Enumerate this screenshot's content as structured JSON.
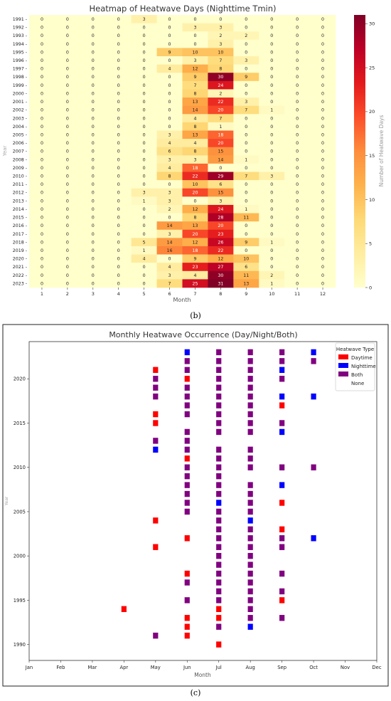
{
  "captions": {
    "b": "(b)",
    "c": "(c)"
  },
  "colors": {
    "daytime": "#ff0000",
    "nighttime": "#0000ff",
    "both": "#800080",
    "heat_low": "#ffffcc",
    "heat_high": "#800026"
  },
  "chart_data": [
    {
      "type": "heatmap",
      "title": "Heatmap of Heatwave Days (Nighttime Tmin)",
      "xlabel": "Month",
      "ylabel": "Year",
      "colorbar_label": "Number of Heatwave Days",
      "colorbar_range": [
        0,
        31
      ],
      "colorbar_ticks": [
        0,
        5,
        10,
        15,
        20,
        25,
        30
      ],
      "columns": [
        1,
        2,
        3,
        4,
        5,
        6,
        7,
        8,
        9,
        10,
        11,
        12
      ],
      "rows": [
        "1991",
        "1992",
        "1993",
        "1994",
        "1995",
        "1996",
        "1997",
        "1998",
        "1999",
        "2000",
        "2001",
        "2002",
        "2003",
        "2004",
        "2005",
        "2006",
        "2007",
        "2008",
        "2009",
        "2010",
        "2011",
        "2012",
        "2013",
        "2014",
        "2015",
        "2016",
        "2017",
        "2018",
        "2019",
        "2020",
        "2021",
        "2022",
        "2023"
      ],
      "values": [
        [
          0,
          0,
          0,
          0,
          3,
          0,
          0,
          0,
          0,
          0,
          0,
          0
        ],
        [
          0,
          0,
          0,
          0,
          0,
          0,
          3,
          3,
          0,
          0,
          0,
          0
        ],
        [
          0,
          0,
          0,
          0,
          0,
          0,
          0,
          2,
          2,
          0,
          0,
          0
        ],
        [
          0,
          0,
          0,
          0,
          0,
          0,
          0,
          3,
          0,
          0,
          0,
          0
        ],
        [
          0,
          0,
          0,
          0,
          0,
          9,
          10,
          10,
          0,
          0,
          0,
          0
        ],
        [
          0,
          0,
          0,
          0,
          0,
          0,
          3,
          7,
          3,
          0,
          0,
          0
        ],
        [
          0,
          0,
          0,
          0,
          0,
          4,
          12,
          8,
          0,
          0,
          0,
          0
        ],
        [
          0,
          0,
          0,
          0,
          0,
          0,
          9,
          30,
          9,
          0,
          0,
          0
        ],
        [
          0,
          0,
          0,
          0,
          0,
          0,
          7,
          24,
          0,
          0,
          0,
          0
        ],
        [
          0,
          0,
          0,
          0,
          0,
          0,
          8,
          2,
          0,
          0,
          0,
          0
        ],
        [
          0,
          0,
          0,
          0,
          0,
          0,
          13,
          22,
          3,
          0,
          0,
          0
        ],
        [
          0,
          0,
          0,
          0,
          0,
          0,
          14,
          20,
          7,
          1,
          0,
          0
        ],
        [
          0,
          0,
          0,
          0,
          0,
          0,
          4,
          7,
          0,
          0,
          0,
          0
        ],
        [
          0,
          0,
          0,
          0,
          0,
          0,
          8,
          1,
          0,
          0,
          0,
          0
        ],
        [
          0,
          0,
          0,
          0,
          0,
          3,
          13,
          18,
          0,
          0,
          0,
          0
        ],
        [
          0,
          0,
          0,
          0,
          0,
          4,
          4,
          20,
          0,
          0,
          0,
          0
        ],
        [
          0,
          0,
          0,
          0,
          0,
          6,
          8,
          15,
          0,
          0,
          0,
          0
        ],
        [
          0,
          0,
          0,
          0,
          0,
          3,
          3,
          14,
          1,
          0,
          0,
          0
        ],
        [
          0,
          0,
          0,
          0,
          0,
          4,
          18,
          0,
          0,
          0,
          0,
          0
        ],
        [
          0,
          0,
          0,
          0,
          0,
          8,
          22,
          29,
          7,
          3,
          0,
          0
        ],
        [
          0,
          0,
          0,
          0,
          0,
          0,
          10,
          6,
          0,
          0,
          0,
          0
        ],
        [
          0,
          0,
          0,
          0,
          3,
          3,
          20,
          15,
          0,
          0,
          0,
          0
        ],
        [
          0,
          0,
          0,
          0,
          1,
          3,
          0,
          3,
          0,
          0,
          0,
          0
        ],
        [
          0,
          0,
          0,
          0,
          0,
          2,
          12,
          24,
          1,
          0,
          0,
          0
        ],
        [
          0,
          0,
          0,
          0,
          0,
          0,
          8,
          28,
          11,
          0,
          0,
          0
        ],
        [
          0,
          0,
          0,
          0,
          0,
          14,
          13,
          20,
          0,
          0,
          0,
          0
        ],
        [
          0,
          0,
          0,
          0,
          0,
          3,
          20,
          23,
          0,
          0,
          0,
          0
        ],
        [
          0,
          0,
          0,
          0,
          5,
          14,
          12,
          26,
          9,
          1,
          0,
          0
        ],
        [
          0,
          0,
          0,
          0,
          1,
          16,
          18,
          22,
          0,
          0,
          0,
          0
        ],
        [
          0,
          0,
          0,
          0,
          4,
          0,
          9,
          12,
          10,
          0,
          0,
          0
        ],
        [
          0,
          0,
          0,
          0,
          0,
          4,
          23,
          27,
          6,
          0,
          0,
          0
        ],
        [
          0,
          0,
          0,
          0,
          0,
          3,
          4,
          30,
          11,
          2,
          0,
          0
        ],
        [
          0,
          0,
          0,
          0,
          0,
          7,
          25,
          31,
          13,
          1,
          0,
          0
        ]
      ]
    },
    {
      "type": "scatter",
      "title": "Monthly Heatwave Occurrence (Day/Night/Both)",
      "xlabel": "Month",
      "ylabel": "Year",
      "x_categories": [
        "Jan",
        "Feb",
        "Mar",
        "Apr",
        "May",
        "Jun",
        "Jul",
        "Aug",
        "Sep",
        "Oct",
        "Nov",
        "Dec"
      ],
      "ylim": [
        1988.2,
        2024.2
      ],
      "y_ticks": [
        1990,
        1995,
        2000,
        2005,
        2010,
        2015,
        2020
      ],
      "legend": {
        "title": "Heatwave Type",
        "position": "top-right",
        "entries": [
          "Daytime",
          "Nighttime",
          "Both",
          "None"
        ]
      },
      "series": [
        {
          "name": "Daytime",
          "points": [
            {
              "x": "Apr",
              "y": 1994
            },
            {
              "x": "May",
              "y": 2001
            },
            {
              "x": "May",
              "y": 2004
            },
            {
              "x": "May",
              "y": 2015
            },
            {
              "x": "May",
              "y": 2016
            },
            {
              "x": "May",
              "y": 2021
            },
            {
              "x": "Jun",
              "y": 1991
            },
            {
              "x": "Jun",
              "y": 1992
            },
            {
              "x": "Jun",
              "y": 1993
            },
            {
              "x": "Jun",
              "y": 1998
            },
            {
              "x": "Jun",
              "y": 2002
            },
            {
              "x": "Jun",
              "y": 2011
            },
            {
              "x": "Jun",
              "y": 2020
            },
            {
              "x": "Jul",
              "y": 1990
            },
            {
              "x": "Jul",
              "y": 1993
            },
            {
              "x": "Jul",
              "y": 1994
            },
            {
              "x": "Sep",
              "y": 1995
            },
            {
              "x": "Sep",
              "y": 2003
            },
            {
              "x": "Sep",
              "y": 2006
            },
            {
              "x": "Sep",
              "y": 2017
            }
          ]
        },
        {
          "name": "Nighttime",
          "points": [
            {
              "x": "May",
              "y": 2012
            },
            {
              "x": "Jun",
              "y": 2023
            },
            {
              "x": "Jul",
              "y": 2006
            },
            {
              "x": "Aug",
              "y": 1992
            },
            {
              "x": "Aug",
              "y": 2004
            },
            {
              "x": "Sep",
              "y": 2008
            },
            {
              "x": "Sep",
              "y": 2014
            },
            {
              "x": "Sep",
              "y": 2018
            },
            {
              "x": "Sep",
              "y": 2021
            },
            {
              "x": "Oct",
              "y": 2002
            },
            {
              "x": "Oct",
              "y": 2018
            },
            {
              "x": "Oct",
              "y": 2023
            }
          ]
        },
        {
          "name": "Both",
          "points": [
            {
              "x": "May",
              "y": 1991
            },
            {
              "x": "May",
              "y": 2013
            },
            {
              "x": "May",
              "y": 2018
            },
            {
              "x": "May",
              "y": 2019
            },
            {
              "x": "May",
              "y": 2020
            },
            {
              "x": "Jun",
              "y": 1995
            },
            {
              "x": "Jun",
              "y": 1997
            },
            {
              "x": "Jun",
              "y": 2005
            },
            {
              "x": "Jun",
              "y": 2006
            },
            {
              "x": "Jun",
              "y": 2007
            },
            {
              "x": "Jun",
              "y": 2008
            },
            {
              "x": "Jun",
              "y": 2009
            },
            {
              "x": "Jun",
              "y": 2010
            },
            {
              "x": "Jun",
              "y": 2012
            },
            {
              "x": "Jun",
              "y": 2013
            },
            {
              "x": "Jun",
              "y": 2014
            },
            {
              "x": "Jun",
              "y": 2016
            },
            {
              "x": "Jun",
              "y": 2017
            },
            {
              "x": "Jun",
              "y": 2018
            },
            {
              "x": "Jun",
              "y": 2019
            },
            {
              "x": "Jun",
              "y": 2021
            },
            {
              "x": "Jun",
              "y": 2022
            },
            {
              "x": "Jul",
              "y": 1992
            },
            {
              "x": "Jul",
              "y": 1995
            },
            {
              "x": "Jul",
              "y": 1996
            },
            {
              "x": "Jul",
              "y": 1997
            },
            {
              "x": "Jul",
              "y": 1998
            },
            {
              "x": "Jul",
              "y": 1999
            },
            {
              "x": "Jul",
              "y": 2000
            },
            {
              "x": "Jul",
              "y": 2001
            },
            {
              "x": "Jul",
              "y": 2002
            },
            {
              "x": "Jul",
              "y": 2003
            },
            {
              "x": "Jul",
              "y": 2004
            },
            {
              "x": "Jul",
              "y": 2005
            },
            {
              "x": "Jul",
              "y": 2007
            },
            {
              "x": "Jul",
              "y": 2008
            },
            {
              "x": "Jul",
              "y": 2009
            },
            {
              "x": "Jul",
              "y": 2010
            },
            {
              "x": "Jul",
              "y": 2011
            },
            {
              "x": "Jul",
              "y": 2012
            },
            {
              "x": "Jul",
              "y": 2014
            },
            {
              "x": "Jul",
              "y": 2015
            },
            {
              "x": "Jul",
              "y": 2016
            },
            {
              "x": "Jul",
              "y": 2017
            },
            {
              "x": "Jul",
              "y": 2018
            },
            {
              "x": "Jul",
              "y": 2019
            },
            {
              "x": "Jul",
              "y": 2020
            },
            {
              "x": "Jul",
              "y": 2021
            },
            {
              "x": "Jul",
              "y": 2022
            },
            {
              "x": "Jul",
              "y": 2023
            },
            {
              "x": "Aug",
              "y": 1993
            },
            {
              "x": "Aug",
              "y": 1994
            },
            {
              "x": "Aug",
              "y": 1995
            },
            {
              "x": "Aug",
              "y": 1996
            },
            {
              "x": "Aug",
              "y": 1997
            },
            {
              "x": "Aug",
              "y": 1998
            },
            {
              "x": "Aug",
              "y": 1999
            },
            {
              "x": "Aug",
              "y": 2000
            },
            {
              "x": "Aug",
              "y": 2001
            },
            {
              "x": "Aug",
              "y": 2002
            },
            {
              "x": "Aug",
              "y": 2003
            },
            {
              "x": "Aug",
              "y": 2005
            },
            {
              "x": "Aug",
              "y": 2006
            },
            {
              "x": "Aug",
              "y": 2007
            },
            {
              "x": "Aug",
              "y": 2008
            },
            {
              "x": "Aug",
              "y": 2010
            },
            {
              "x": "Aug",
              "y": 2011
            },
            {
              "x": "Aug",
              "y": 2012
            },
            {
              "x": "Aug",
              "y": 2014
            },
            {
              "x": "Aug",
              "y": 2015
            },
            {
              "x": "Aug",
              "y": 2016
            },
            {
              "x": "Aug",
              "y": 2017
            },
            {
              "x": "Aug",
              "y": 2018
            },
            {
              "x": "Aug",
              "y": 2019
            },
            {
              "x": "Aug",
              "y": 2020
            },
            {
              "x": "Aug",
              "y": 2021
            },
            {
              "x": "Aug",
              "y": 2022
            },
            {
              "x": "Aug",
              "y": 2023
            },
            {
              "x": "Sep",
              "y": 1993
            },
            {
              "x": "Sep",
              "y": 1996
            },
            {
              "x": "Sep",
              "y": 1998
            },
            {
              "x": "Sep",
              "y": 2001
            },
            {
              "x": "Sep",
              "y": 2002
            },
            {
              "x": "Sep",
              "y": 2010
            },
            {
              "x": "Sep",
              "y": 2015
            },
            {
              "x": "Sep",
              "y": 2020
            },
            {
              "x": "Sep",
              "y": 2022
            },
            {
              "x": "Sep",
              "y": 2023
            },
            {
              "x": "Oct",
              "y": 2010
            },
            {
              "x": "Oct",
              "y": 2022
            }
          ]
        }
      ]
    }
  ]
}
